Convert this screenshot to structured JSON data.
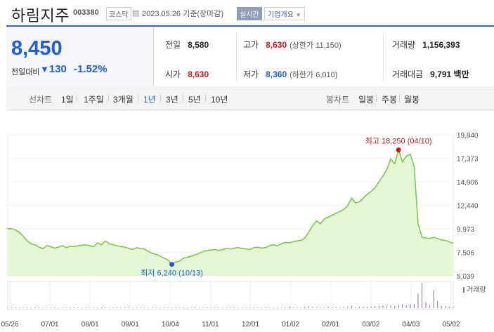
{
  "header": {
    "name": "하림지주",
    "code": "003380",
    "market": "코스닥",
    "date": "2023.05.26 기준(장마감)",
    "realtime": "실시간",
    "company_info": "기업개요"
  },
  "summary": {
    "price": "8,450",
    "change_label": "전일대비",
    "change": "130",
    "change_pct": "-1.52%",
    "prev_label": "전일",
    "prev_value": "8,580",
    "high_label": "고가",
    "high_value": "8,630",
    "upper_limit": "(상한가 11,150)",
    "volume_label": "거래량",
    "volume_value": "1,156,393",
    "open_label": "시가",
    "open_value": "8,630",
    "low_label": "저가",
    "low_value": "8,360",
    "lower_limit": "(하한가 6,010)",
    "amount_label": "거래대금",
    "amount_value": "9,791 백만"
  },
  "period_tabs": {
    "label": "선차트",
    "items": [
      "1일",
      "1주일",
      "3개월",
      "1년",
      "3년",
      "5년",
      "10년"
    ],
    "active": "1년"
  },
  "candle_tabs": {
    "label": "봉차트",
    "items": [
      "일봉",
      "주봉",
      "월봉"
    ]
  },
  "colors": {
    "accent": "#1c5fd6",
    "up": "#d21b1b",
    "line": "#6fcb3c",
    "fill": "#e4f6d4"
  },
  "chart_data": {
    "type": "area",
    "x_tick_labels": [
      "05/26",
      "07/01",
      "08/01",
      "09/01",
      "10/04",
      "11/01",
      "12/01",
      "01/02",
      "02/01",
      "03/02",
      "04/03",
      "05/02"
    ],
    "y_tick_labels": [
      "19,840",
      "17,373",
      "14,906",
      "12,440",
      "9,973",
      "7,506",
      "5,039"
    ],
    "ylim": [
      5039,
      19840
    ],
    "series": [
      {
        "values": [
          10000,
          9980,
          9850,
          9600,
          9200,
          8700,
          8400,
          8300,
          8050,
          7900,
          8200,
          8100,
          7950,
          8050,
          8200,
          8000,
          8150,
          8100,
          8200,
          8250,
          8300,
          8200,
          8100,
          8500,
          8300,
          8700,
          8400,
          8300,
          8200,
          8100,
          8050,
          7900,
          7800,
          8000,
          7900,
          7850,
          7600,
          7400,
          7300,
          7100,
          6900,
          6700,
          6240,
          6500,
          6600,
          6900,
          7000,
          7100,
          7250,
          7400,
          7600,
          7700,
          7750,
          7800,
          7700,
          7800,
          7900,
          7850,
          7950,
          8000,
          7900,
          7850,
          7800,
          8000,
          8050,
          7950,
          8000,
          8200,
          8300,
          8200,
          8400,
          8550,
          8500,
          8600,
          8700,
          8750,
          9000,
          9600,
          10300,
          10800,
          10500,
          11000,
          11200,
          11400,
          11600,
          11800,
          12000,
          12400,
          13200,
          12700,
          12800,
          13200,
          13600,
          13900,
          14300,
          14900,
          15500,
          16200,
          17300,
          16800,
          18250,
          17000,
          17600,
          17800,
          16500,
          10500,
          9100,
          9000,
          8950,
          9100,
          8950,
          8800,
          8750,
          8600,
          8450
        ]
      }
    ],
    "volume": {
      "label": "거래량",
      "values": [
        1,
        1,
        1,
        1,
        1,
        1,
        1,
        1,
        1,
        1,
        1,
        1,
        1,
        1,
        1,
        1,
        1,
        1,
        1,
        1,
        1,
        1,
        1,
        1,
        1,
        1,
        1,
        1,
        1,
        1,
        1,
        1,
        1,
        1,
        1,
        1,
        1,
        1,
        1,
        1,
        1,
        1,
        1,
        1,
        1,
        1,
        1,
        1,
        1,
        1,
        1,
        1,
        1,
        1,
        1,
        1,
        1,
        1,
        1,
        1,
        1,
        1,
        1,
        1,
        1,
        1,
        1,
        1,
        1,
        1,
        1,
        1,
        2,
        1,
        1,
        1,
        2,
        3,
        2,
        1,
        1,
        1,
        2,
        1,
        1,
        1,
        2,
        2,
        3,
        1,
        2,
        2,
        2,
        2,
        3,
        3,
        4,
        3,
        4,
        3,
        5,
        6,
        4,
        5,
        6,
        20,
        35,
        8,
        4,
        25,
        10,
        3,
        3,
        2,
        2
      ]
    },
    "annotations": {
      "high": {
        "label": "최고 18,250 (04/10)",
        "value": 18250
      },
      "low": {
        "label": "최저 6,240 (10/13)",
        "value": 6240
      }
    }
  }
}
